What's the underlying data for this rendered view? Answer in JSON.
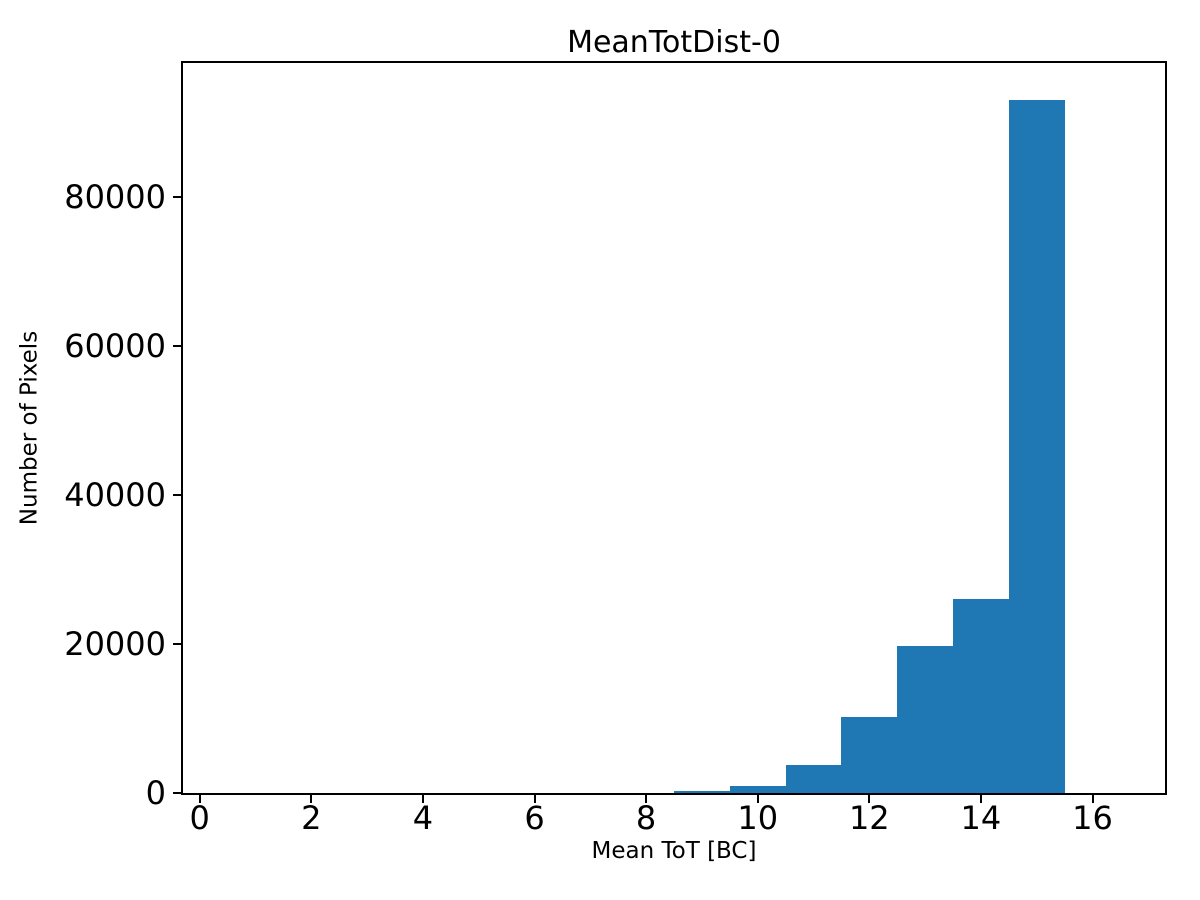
{
  "chart_data": {
    "type": "bar",
    "subtype": "histogram",
    "title": "MeanTotDist-0",
    "xlabel": "Mean ToT [BC]",
    "ylabel": "Number of Pixels",
    "bar_color": "#1f77b4",
    "axes_color": "#000000",
    "text_color": "#000000",
    "background_color": "#ffffff",
    "bin_edges": [
      8.5,
      9.5,
      10.5,
      11.5,
      12.5,
      13.5,
      14.5,
      15.5
    ],
    "counts": [
      250,
      1000,
      3700,
      10200,
      19700,
      26100,
      93000
    ],
    "xlim": [
      -0.3,
      17.3
    ],
    "ylim": [
      0,
      98000
    ],
    "xtick_values": [
      0,
      2,
      4,
      6,
      8,
      10,
      12,
      14,
      16
    ],
    "xtick_labels": [
      "0",
      "2",
      "4",
      "6",
      "8",
      "10",
      "12",
      "14",
      "16"
    ],
    "ytick_values": [
      0,
      20000,
      40000,
      60000,
      80000
    ],
    "ytick_labels": [
      "0",
      "20000",
      "40000",
      "60000",
      "80000"
    ],
    "grid": false,
    "legend": null
  }
}
